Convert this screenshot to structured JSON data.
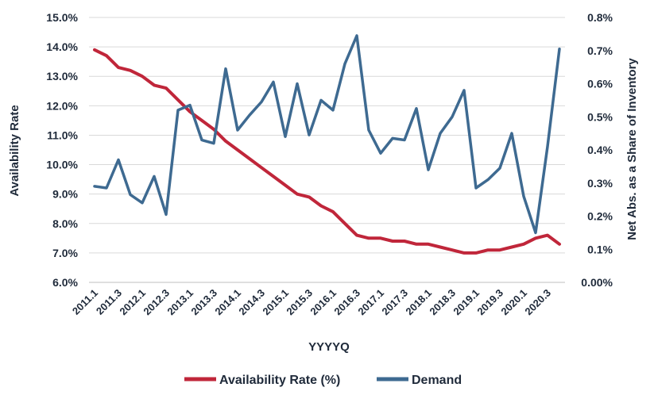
{
  "chart_data": {
    "type": "line",
    "xlabel": "YYYYQ",
    "y_left_label": "Availability Rate",
    "y_right_label": "Net Abs. as a Share of Inventory",
    "y_left_ticks": [
      "6.0%",
      "7.0%",
      "8.0%",
      "9.0%",
      "10.0%",
      "11.0%",
      "12.0%",
      "13.0%",
      "14.0%",
      "15.0%"
    ],
    "y_right_ticks": [
      "0.00%",
      "0.1%",
      "0.2%",
      "0.3%",
      "0.4%",
      "0.5%",
      "0.6%",
      "0.7%",
      "0.8%"
    ],
    "y_left_lim": [
      6.0,
      15.0
    ],
    "y_right_lim": [
      0.0,
      0.8
    ],
    "grid": "horizontal",
    "legend_position": "bottom",
    "categories": [
      "2011.1",
      "2011.2",
      "2011.3",
      "2011.4",
      "2012.1",
      "2012.2",
      "2012.3",
      "2012.4",
      "2013.1",
      "2013.2",
      "2013.3",
      "2013.4",
      "2014.1",
      "2014.2",
      "2014.3",
      "2014.4",
      "2015.1",
      "2015.2",
      "2015.3",
      "2015.4",
      "2016.1",
      "2016.2",
      "2016.3",
      "2016.4",
      "2017.1",
      "2017.2",
      "2017.3",
      "2017.4",
      "2018.1",
      "2018.2",
      "2018.3",
      "2018.4",
      "2019.1",
      "2019.2",
      "2019.3",
      "2019.4",
      "2020.1",
      "2020.2",
      "2020.3",
      "2020.4"
    ],
    "tick_labels": [
      "2011.1",
      "2011.3",
      "2012.1",
      "2012.3",
      "2013.1",
      "2013.3",
      "2014.1",
      "2014.3",
      "2015.1",
      "2015.3",
      "2016.1",
      "2016.3",
      "2017.1",
      "2017.3",
      "2018.1",
      "2018.3",
      "2019.1",
      "2019.3",
      "2020.1",
      "2020.3"
    ],
    "series": [
      {
        "name": "Availability Rate (%)",
        "axis": "left",
        "color": "#c0263a",
        "values": [
          13.9,
          13.7,
          13.3,
          13.2,
          13.0,
          12.7,
          12.6,
          12.2,
          11.8,
          11.5,
          11.2,
          10.8,
          10.5,
          10.2,
          9.9,
          9.6,
          9.3,
          9.0,
          8.9,
          8.6,
          8.4,
          8.0,
          7.6,
          7.5,
          7.5,
          7.4,
          7.4,
          7.3,
          7.3,
          7.2,
          7.1,
          7.0,
          7.0,
          7.1,
          7.1,
          7.2,
          7.3,
          7.5,
          7.6,
          7.3
        ]
      },
      {
        "name": "Demand",
        "axis": "right",
        "color": "#3e6a91",
        "values": [
          0.29,
          0.285,
          0.37,
          0.265,
          0.24,
          0.32,
          0.205,
          0.52,
          0.535,
          0.43,
          0.42,
          0.645,
          0.46,
          0.505,
          0.545,
          0.605,
          0.44,
          0.6,
          0.445,
          0.55,
          0.52,
          0.66,
          0.745,
          0.46,
          0.39,
          0.435,
          0.43,
          0.525,
          0.34,
          0.45,
          0.5,
          0.58,
          0.285,
          0.31,
          0.345,
          0.45,
          0.26,
          0.15,
          0.41,
          0.705
        ]
      }
    ]
  }
}
